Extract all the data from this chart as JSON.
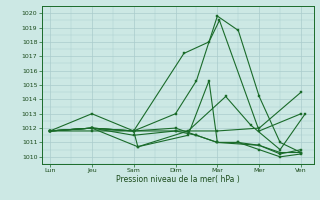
{
  "title": "",
  "xlabel": "Pression niveau de la mer( hPa )",
  "background_color": "#cce8e4",
  "grid_color": "#aacccc",
  "line_color": "#1a6b2a",
  "ylim": [
    1009.5,
    1020.5
  ],
  "yticks": [
    1010,
    1011,
    1012,
    1013,
    1014,
    1015,
    1016,
    1017,
    1018,
    1019,
    1020
  ],
  "x_tick_labels": [
    "Lun",
    "Jeu",
    "Sam",
    "Dim",
    "Mar",
    "Mer",
    "Ven"
  ],
  "x_tick_positions": [
    0,
    1,
    2,
    3,
    4,
    5,
    6
  ],
  "series": [
    {
      "x": [
        0,
        1,
        2,
        3,
        4,
        5,
        6
      ],
      "y": [
        1011.8,
        1013.0,
        1011.8,
        1011.8,
        1011.8,
        1012.0,
        1014.5
      ]
    },
    {
      "x": [
        0,
        1,
        2,
        3,
        3.5,
        4.0,
        4.5,
        5,
        5.5,
        6
      ],
      "y": [
        1011.8,
        1012.0,
        1011.8,
        1013.0,
        1015.3,
        1019.8,
        1018.8,
        1014.2,
        1011.0,
        1010.3
      ]
    },
    {
      "x": [
        0,
        1,
        2,
        3.2,
        3.8,
        4.05,
        5,
        6
      ],
      "y": [
        1011.8,
        1012.0,
        1011.8,
        1017.2,
        1018.0,
        1019.5,
        1011.8,
        1013.0
      ]
    },
    {
      "x": [
        0,
        1,
        2,
        2.1,
        3.3,
        3.8,
        4.0,
        5,
        5.5,
        6
      ],
      "y": [
        1011.8,
        1012.0,
        1011.8,
        1010.7,
        1011.5,
        1015.3,
        1011.0,
        1010.8,
        1010.3,
        1010.3
      ]
    },
    {
      "x": [
        0,
        1,
        2.1,
        3.3,
        4.2,
        4.8,
        5.5,
        6.1
      ],
      "y": [
        1011.8,
        1012.0,
        1010.7,
        1011.8,
        1014.2,
        1012.2,
        1010.5,
        1013.0
      ]
    },
    {
      "x": [
        0,
        1,
        2,
        3,
        3.5,
        4.0,
        4.5,
        5,
        5.5,
        6
      ],
      "y": [
        1011.8,
        1011.8,
        1011.8,
        1012.0,
        1011.5,
        1011.0,
        1011.0,
        1010.5,
        1010.0,
        1010.2
      ]
    },
    {
      "x": [
        0,
        1,
        2,
        3,
        3.5,
        4.0,
        4.5,
        5,
        5.5,
        6
      ],
      "y": [
        1011.8,
        1012.0,
        1011.5,
        1011.8,
        1011.5,
        1011.0,
        1011.0,
        1010.8,
        1010.2,
        1010.5
      ]
    }
  ]
}
